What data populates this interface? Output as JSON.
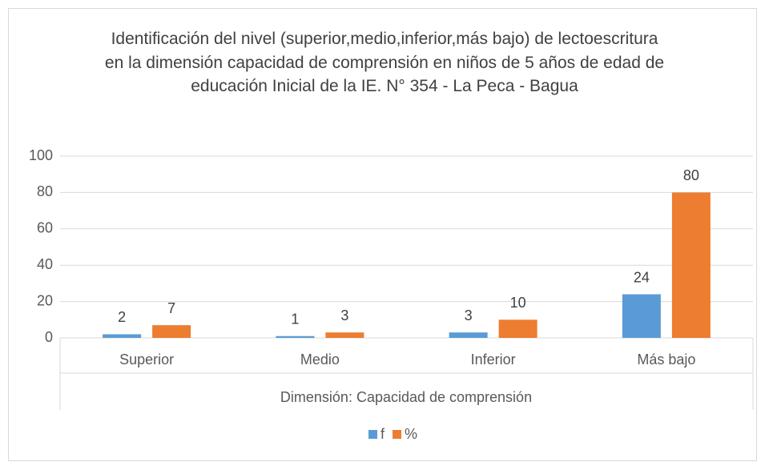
{
  "chart_data": {
    "type": "bar",
    "title": "Identificación del nivel (superior,medio,inferior,más bajo) de lectoescritura en la dimensión capacidad de comprensión en niños de 5 años de edad de educación Inicial de la IE. N° 354 - La Peca - Bagua",
    "categories": [
      "Superior",
      "Medio",
      "Inferior",
      "Más bajo"
    ],
    "x_label": "Dimensión: Capacidad de comprensión",
    "series": [
      {
        "name": "f",
        "color": "#5b9bd5",
        "values": [
          2,
          1,
          3,
          24
        ]
      },
      {
        "name": "%",
        "color": "#ed7d31",
        "values": [
          7,
          3,
          10,
          80
        ]
      }
    ],
    "ylim": [
      0,
      100
    ],
    "yticks": [
      0,
      20,
      40,
      60,
      80,
      100
    ],
    "grid": true,
    "legend": "bottom"
  }
}
